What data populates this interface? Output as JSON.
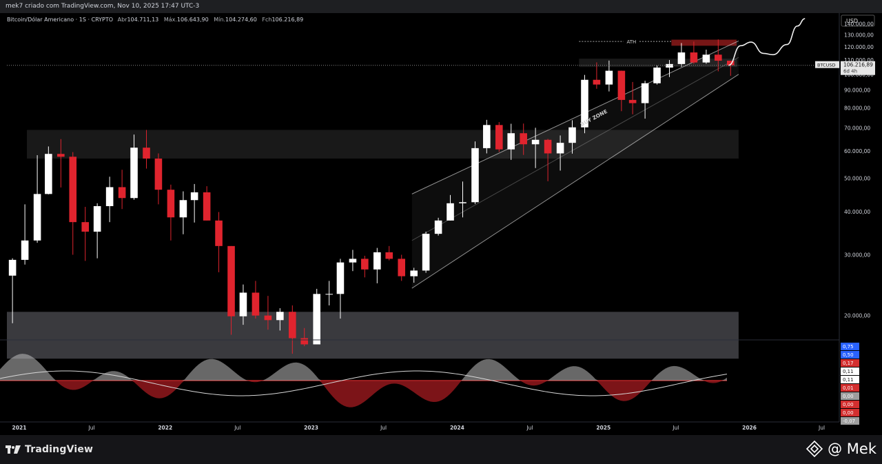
{
  "header": {
    "created_by": "mek7 criado com TradingView.com, Nov 10, 2025 17:47 UTC-3",
    "symbol_desc": "Bitcoin/Dólar Americano · 1S · CRYPTO",
    "ohlc": [
      {
        "label": "Abr",
        "value": "104.711,13"
      },
      {
        "label": "Máx.",
        "value": "106.643,90"
      },
      {
        "label": "Mín.",
        "value": "104.274,60"
      },
      {
        "label": "Fch",
        "value": "106.216,89"
      }
    ]
  },
  "currency_label": "USD",
  "price_axis": {
    "ticks": [
      {
        "value": 140000,
        "label": "140.000,00"
      },
      {
        "value": 130000,
        "label": "130.000,00"
      },
      {
        "value": 120000,
        "label": "120.000,00"
      },
      {
        "value": 110000,
        "label": "110.000,00"
      },
      {
        "value": 100000,
        "label": "100.000,00"
      },
      {
        "value": 90000,
        "label": "90.000,00"
      },
      {
        "value": 80000,
        "label": "80.000,00"
      },
      {
        "value": 70000,
        "label": "70.000,00"
      },
      {
        "value": 60000,
        "label": "60.000,00"
      },
      {
        "value": 50000,
        "label": "50.000,00"
      },
      {
        "value": 40000,
        "label": "40.000,00"
      },
      {
        "value": 30000,
        "label": "30.000,00"
      },
      {
        "value": 20000,
        "label": "20.000,00"
      }
    ]
  },
  "current_price": {
    "symbol": "BTCUSD",
    "value": 106216.89,
    "label": "106.216,89",
    "countdown": "6d 4h"
  },
  "annotations": {
    "ath": "ATH",
    "buy_zone": "BUY ZONE"
  },
  "time_axis": {
    "labels": [
      "2021",
      "Jul",
      "2022",
      "Jul",
      "2023",
      "Jul",
      "2024",
      "Jul",
      "2025",
      "Jul",
      "2026",
      "Jul"
    ]
  },
  "oscillator": {
    "labels": [
      "0,75",
      "0,50",
      "0,17",
      "0,11",
      "0,11",
      "0,01",
      "0,00",
      "0,00",
      "0,00",
      "-0,07"
    ],
    "colors": [
      "#2962ff",
      "#2962ff",
      "#d32f2f",
      "#ffffff",
      "#ffffff",
      "#d32f2f",
      "#9e9e9e",
      "#d32f2f",
      "#d32f2f",
      "#9e9e9e"
    ]
  },
  "footer": {
    "logo_text": "TradingView",
    "brand_text": "@ Mek"
  },
  "chart_data": {
    "type": "candlestick",
    "interval": "1W",
    "y_scale": "log",
    "ylim": [
      17000,
      145000
    ],
    "xlim": [
      "2020-12-01",
      "2026-07-31"
    ],
    "x": [
      "2020-12",
      "2021-01",
      "2021-02",
      "2021-03",
      "2021-04",
      "2021-05",
      "2021-06",
      "2021-07",
      "2021-08",
      "2021-09",
      "2021-10",
      "2021-11",
      "2021-12",
      "2022-01",
      "2022-02",
      "2022-03",
      "2022-04",
      "2022-05",
      "2022-06",
      "2022-07",
      "2022-08",
      "2022-09",
      "2022-10",
      "2022-11",
      "2022-12",
      "2023-01",
      "2023-02",
      "2023-03",
      "2023-04",
      "2023-05",
      "2023-06",
      "2023-07",
      "2023-08",
      "2023-09",
      "2023-10",
      "2023-11",
      "2023-12",
      "2024-01",
      "2024-02",
      "2024-03",
      "2024-04",
      "2024-05",
      "2024-06",
      "2024-07",
      "2024-08",
      "2024-09",
      "2024-10",
      "2024-11",
      "2024-12",
      "2025-01",
      "2025-02",
      "2025-03",
      "2025-04",
      "2025-05",
      "2025-06",
      "2025-07",
      "2025-08",
      "2025-09",
      "2025-10",
      "2025-11"
    ],
    "close": [
      29000,
      33000,
      45000,
      58800,
      57700,
      37300,
      35000,
      41500,
      47100,
      43800,
      61300,
      57000,
      46300,
      38500,
      43200,
      45500,
      37700,
      31800,
      19900,
      23300,
      20000,
      19400,
      20500,
      17200,
      16500,
      23100,
      23100,
      28500,
      29200,
      27200,
      30500,
      29200,
      26000,
      27000,
      34500,
      37700,
      42300,
      42600,
      61100,
      71300,
      60600,
      67500,
      62700,
      64600,
      59000,
      63300,
      70200,
      96400,
      93400,
      102400,
      84300,
      82500,
      94200,
      104600,
      107100,
      115700,
      108200,
      114000,
      109500,
      106200
    ],
    "high": [
      29300,
      42000,
      58300,
      61800,
      64900,
      59500,
      41300,
      42300,
      50500,
      52900,
      66900,
      69000,
      59000,
      47900,
      45800,
      48100,
      47400,
      39900,
      31800,
      24600,
      25200,
      22800,
      21000,
      21400,
      18400,
      23900,
      25200,
      29200,
      31000,
      29800,
      31400,
      31800,
      30000,
      27500,
      35000,
      38400,
      44700,
      48900,
      63900,
      73800,
      72700,
      71900,
      72000,
      70000,
      65000,
      66500,
      73600,
      99600,
      108300,
      109600,
      102500,
      95000,
      95800,
      106000,
      110000,
      123200,
      124400,
      117900,
      126200,
      107500
    ],
    "low": [
      19000,
      28100,
      32500,
      44900,
      47000,
      30000,
      28800,
      29300,
      37300,
      40700,
      43300,
      53300,
      42000,
      33000,
      34400,
      37200,
      37700,
      26700,
      17600,
      18800,
      19600,
      18200,
      18100,
      15500,
      16300,
      16500,
      21400,
      19600,
      26900,
      25800,
      24800,
      28900,
      25200,
      24900,
      26600,
      34100,
      37700,
      38500,
      42100,
      59000,
      59600,
      56500,
      58400,
      53500,
      49000,
      52600,
      58900,
      67500,
      90800,
      89200,
      78200,
      76600,
      74400,
      93400,
      98200,
      105100,
      107300,
      107300,
      102000,
      99000
    ],
    "zones": [
      {
        "name": "ath",
        "from": 121000,
        "to": 126000
      },
      {
        "name": "resistance",
        "from": 105000,
        "to": 111000
      },
      {
        "name": "mid",
        "from": 57000,
        "to": 69000
      },
      {
        "name": "bottom",
        "from": 15000,
        "to": 20500
      }
    ],
    "projection": [
      [
        "2025-11-10",
        106200
      ],
      [
        "2025-12-10",
        121000
      ],
      [
        "2026-01-05",
        124000
      ],
      [
        "2026-02-05",
        115000
      ],
      [
        "2026-03-01",
        114000
      ],
      [
        "2026-04-05",
        122000
      ],
      [
        "2026-05-01",
        138000
      ],
      [
        "2026-05-20",
        145000
      ]
    ]
  }
}
